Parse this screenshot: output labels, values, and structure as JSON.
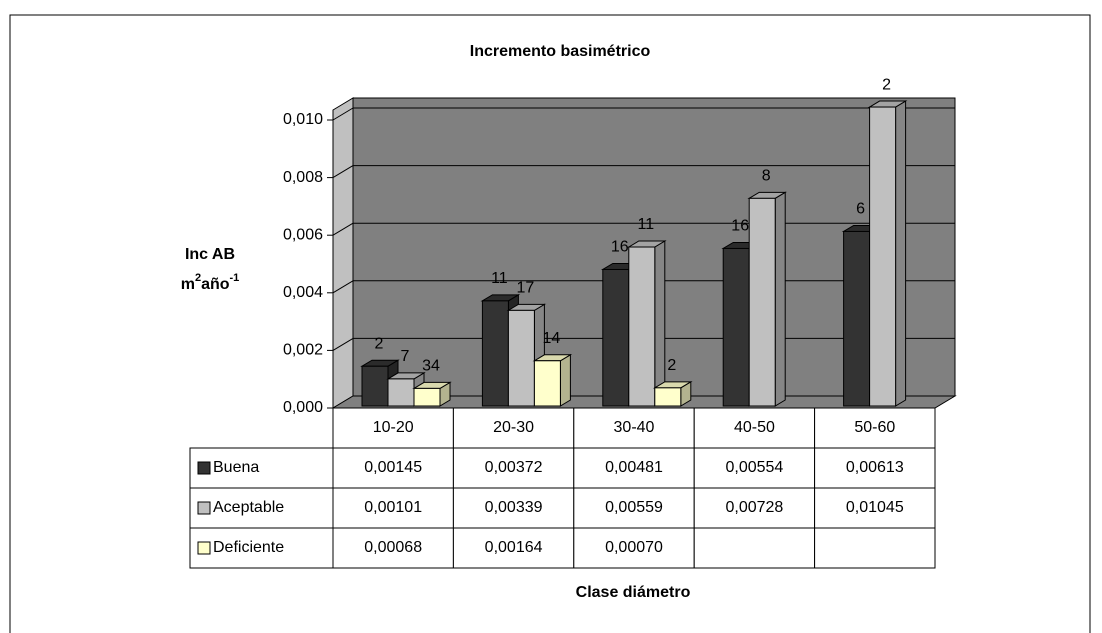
{
  "chart_data": {
    "type": "bar3d",
    "title": "Incremento basimétrico",
    "ylabel": {
      "line1": "Inc AB",
      "unit": "m",
      "sup1": "2",
      "mid": "año",
      "sup2": "-1"
    },
    "xlabel": "Clase diámetro",
    "categories": [
      "10-20",
      "20-30",
      "30-40",
      "40-50",
      "50-60"
    ],
    "ylim": [
      0,
      0.01
    ],
    "yticks": [
      {
        "value": 0,
        "label": "0,000"
      },
      {
        "value": 0.002,
        "label": "0,002"
      },
      {
        "value": 0.004,
        "label": "0,004"
      },
      {
        "value": 0.006,
        "label": "0,006"
      },
      {
        "value": 0.008,
        "label": "0,008"
      },
      {
        "value": 0.01,
        "label": "0,010"
      }
    ],
    "grid": true,
    "series": [
      {
        "name": "Buena",
        "color": "#333333",
        "values": [
          0.00145,
          0.00372,
          0.00481,
          0.00554,
          0.00613
        ],
        "value_labels": [
          "0,00145",
          "0,00372",
          "0,00481",
          "0,00554",
          "0,00613"
        ],
        "counts": [
          2,
          11,
          16,
          16,
          6
        ]
      },
      {
        "name": "Aceptable",
        "color": "#c0c0c0",
        "values": [
          0.00101,
          0.00339,
          0.00559,
          0.00728,
          0.01045
        ],
        "value_labels": [
          "0,00101",
          "0,00339",
          "0,00559",
          "0,00728",
          "0,01045"
        ],
        "counts": [
          7,
          17,
          11,
          8,
          2
        ]
      },
      {
        "name": "Deficiente",
        "color": "#ffffcc",
        "values": [
          0.00068,
          0.00164,
          0.0007,
          null,
          null
        ],
        "value_labels": [
          "0,00068",
          "0,00164",
          "0,00070",
          null,
          null
        ],
        "counts": [
          34,
          14,
          2,
          null,
          null
        ]
      }
    ]
  }
}
